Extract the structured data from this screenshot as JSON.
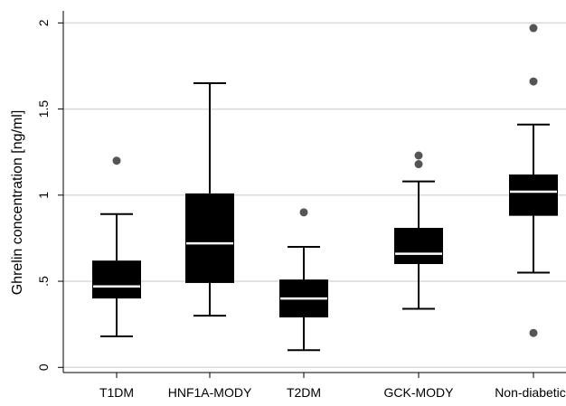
{
  "chart_data": {
    "type": "box",
    "title": "",
    "xlabel": "",
    "ylabel": "Ghrelin concentration [ng/ml]",
    "ylim": [
      -0.03,
      2.07
    ],
    "yticks": [
      {
        "value": 0,
        "label": "0"
      },
      {
        "value": 0.5,
        "label": ".5"
      },
      {
        "value": 1,
        "label": "1"
      },
      {
        "value": 1.5,
        "label": "1.5"
      },
      {
        "value": 2,
        "label": "2"
      }
    ],
    "grid": true,
    "categories": [
      "T1DM",
      "HNF1A-MODY",
      "T2DM",
      "GCK-MODY",
      "Non-diabetics"
    ],
    "boxes": [
      {
        "category": "T1DM",
        "whisker_low": 0.18,
        "q1": 0.4,
        "median": 0.47,
        "q3": 0.62,
        "whisker_high": 0.89,
        "outliers": [
          1.2
        ]
      },
      {
        "category": "HNF1A-MODY",
        "whisker_low": 0.3,
        "q1": 0.49,
        "median": 0.72,
        "q3": 1.01,
        "whisker_high": 1.65,
        "outliers": []
      },
      {
        "category": "T2DM",
        "whisker_low": 0.1,
        "q1": 0.29,
        "median": 0.4,
        "q3": 0.51,
        "whisker_high": 0.7,
        "outliers": [
          0.9
        ]
      },
      {
        "category": "GCK-MODY",
        "whisker_low": 0.34,
        "q1": 0.6,
        "median": 0.66,
        "q3": 0.81,
        "whisker_high": 1.08,
        "outliers": [
          1.18,
          1.23
        ]
      },
      {
        "category": "Non-diabetics",
        "whisker_low": 0.55,
        "q1": 0.88,
        "median": 1.02,
        "q3": 1.12,
        "whisker_high": 1.41,
        "outliers": [
          0.2,
          1.66,
          1.97
        ]
      }
    ],
    "colors": {
      "box": "#000000",
      "median": "#ffffff",
      "outlier": "#555555",
      "grid": "#d9d9d9",
      "axis": "#000000"
    }
  }
}
